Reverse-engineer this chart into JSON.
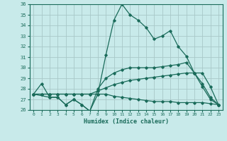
{
  "xlabel": "Humidex (Indice chaleur)",
  "xlim": [
    -0.5,
    23.5
  ],
  "ylim": [
    26,
    36
  ],
  "yticks": [
    26,
    27,
    28,
    29,
    30,
    31,
    32,
    33,
    34,
    35,
    36
  ],
  "xticks": [
    0,
    1,
    2,
    3,
    4,
    5,
    6,
    7,
    8,
    9,
    10,
    11,
    12,
    13,
    14,
    15,
    16,
    17,
    18,
    19,
    20,
    21,
    22,
    23
  ],
  "bg_color": "#c8eaea",
  "grid_color": "#a8c8c8",
  "line_color": "#1a6b5a",
  "lines": [
    {
      "x": [
        0,
        1,
        2,
        3,
        4,
        5,
        6,
        7,
        8,
        9,
        10,
        11,
        12,
        13,
        14,
        15,
        16,
        17,
        18,
        19,
        20,
        21,
        22,
        23
      ],
      "y": [
        27.5,
        28.5,
        27.2,
        27.2,
        26.5,
        27.0,
        26.5,
        25.9,
        27.5,
        31.2,
        34.5,
        36.0,
        35.0,
        34.5,
        33.8,
        32.7,
        33.0,
        33.5,
        32.0,
        31.1,
        29.5,
        28.2,
        27.0,
        26.5
      ]
    },
    {
      "x": [
        0,
        2,
        3,
        4,
        5,
        6,
        7,
        8,
        9,
        10,
        11,
        12,
        13,
        14,
        15,
        16,
        17,
        18,
        19,
        20,
        21,
        22,
        23
      ],
      "y": [
        27.5,
        27.2,
        27.2,
        26.5,
        27.0,
        26.5,
        25.9,
        28.0,
        29.0,
        29.5,
        29.8,
        30.0,
        30.0,
        30.0,
        30.0,
        30.1,
        30.2,
        30.3,
        30.5,
        29.5,
        29.5,
        28.2,
        26.5
      ]
    },
    {
      "x": [
        0,
        1,
        2,
        3,
        4,
        5,
        6,
        7,
        8,
        9,
        10,
        11,
        12,
        13,
        14,
        15,
        16,
        17,
        18,
        19,
        20,
        21,
        22,
        23
      ],
      "y": [
        27.5,
        27.5,
        27.5,
        27.5,
        27.5,
        27.5,
        27.5,
        27.5,
        27.8,
        28.1,
        28.4,
        28.6,
        28.8,
        28.9,
        29.0,
        29.1,
        29.2,
        29.3,
        29.4,
        29.5,
        29.5,
        28.5,
        27.2,
        26.5
      ]
    },
    {
      "x": [
        0,
        1,
        2,
        3,
        4,
        5,
        6,
        7,
        8,
        9,
        10,
        11,
        12,
        13,
        14,
        15,
        16,
        17,
        18,
        19,
        20,
        21,
        22,
        23
      ],
      "y": [
        27.5,
        27.5,
        27.5,
        27.5,
        27.5,
        27.5,
        27.5,
        27.5,
        27.5,
        27.5,
        27.3,
        27.2,
        27.1,
        27.0,
        26.9,
        26.8,
        26.8,
        26.8,
        26.7,
        26.7,
        26.7,
        26.7,
        26.6,
        26.5
      ]
    }
  ]
}
